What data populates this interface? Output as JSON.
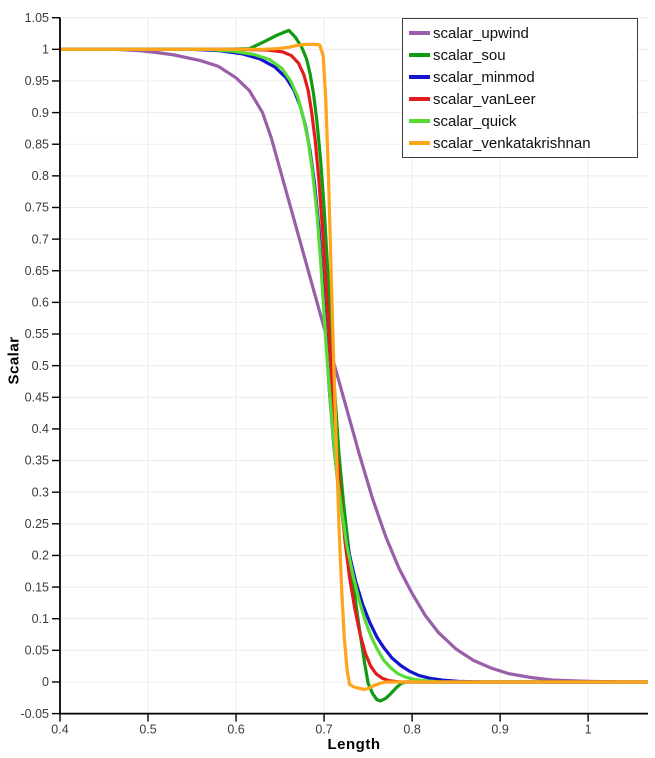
{
  "chart_data": {
    "type": "line",
    "title": "",
    "xlabel": "Length",
    "ylabel": "Scalar",
    "xlim": [
      0.4,
      1.068
    ],
    "ylim": [
      -0.05,
      1.05
    ],
    "grid": {
      "show": true,
      "color": "#ececec",
      "x_step": 0.1,
      "y_step": 0.05
    },
    "axis_color": "#000000",
    "tick_label_color": "#3b3b3b",
    "x_ticks": {
      "values": [
        0.4,
        0.5,
        0.6,
        0.7,
        0.8,
        0.9,
        1.0
      ],
      "labels": [
        "0.4",
        "0.5",
        "0.6",
        "0.7",
        "0.8",
        "0.9",
        "1"
      ]
    },
    "y_ticks": {
      "values": [
        1.05,
        1.0,
        0.95,
        0.9,
        0.85,
        0.8,
        0.75,
        0.7,
        0.65,
        0.6,
        0.55,
        0.5,
        0.45,
        0.4,
        0.35,
        0.3,
        0.25,
        0.2,
        0.15,
        0.1,
        0.05,
        0.0,
        -0.05
      ],
      "labels": [
        "1.05",
        "1",
        "0.95",
        "0.9",
        "0.85",
        "0.8",
        "0.75",
        "0.7",
        "0.65",
        "0.6",
        "0.55",
        "0.5",
        "0.45",
        "0.4",
        "0.35",
        "0.3",
        "0.25",
        "0.2",
        "0.15",
        "0.1",
        "0.05",
        "0",
        "-0.05"
      ]
    },
    "legend": {
      "position": "top-right",
      "border_color": "#3d3d3d",
      "background": "#ffffff"
    },
    "series": [
      {
        "name": "scalar_upwind",
        "color": "#9a5fa8",
        "points": [
          [
            0.4,
            1.0
          ],
          [
            0.46,
            1.0
          ],
          [
            0.49,
            0.998
          ],
          [
            0.51,
            0.995
          ],
          [
            0.53,
            0.991
          ],
          [
            0.56,
            0.982
          ],
          [
            0.58,
            0.973
          ],
          [
            0.6,
            0.955
          ],
          [
            0.615,
            0.935
          ],
          [
            0.63,
            0.9
          ],
          [
            0.64,
            0.86
          ],
          [
            0.65,
            0.81
          ],
          [
            0.66,
            0.76
          ],
          [
            0.67,
            0.71
          ],
          [
            0.68,
            0.66
          ],
          [
            0.69,
            0.61
          ],
          [
            0.7,
            0.56
          ],
          [
            0.712,
            0.5
          ],
          [
            0.725,
            0.435
          ],
          [
            0.74,
            0.36
          ],
          [
            0.755,
            0.29
          ],
          [
            0.77,
            0.23
          ],
          [
            0.785,
            0.18
          ],
          [
            0.8,
            0.14
          ],
          [
            0.815,
            0.105
          ],
          [
            0.83,
            0.078
          ],
          [
            0.85,
            0.052
          ],
          [
            0.87,
            0.034
          ],
          [
            0.89,
            0.022
          ],
          [
            0.91,
            0.013
          ],
          [
            0.935,
            0.007
          ],
          [
            0.96,
            0.003
          ],
          [
            1.0,
            0.001
          ],
          [
            1.04,
            0.0
          ],
          [
            1.068,
            0.0
          ]
        ]
      },
      {
        "name": "scalar_sou",
        "color": "#119b11",
        "points": [
          [
            0.4,
            1.0
          ],
          [
            0.59,
            1.0
          ],
          [
            0.615,
            1.001
          ],
          [
            0.632,
            1.012
          ],
          [
            0.646,
            1.022
          ],
          [
            0.66,
            1.03
          ],
          [
            0.668,
            1.018
          ],
          [
            0.675,
            1.002
          ],
          [
            0.68,
            0.985
          ],
          [
            0.684,
            0.962
          ],
          [
            0.688,
            0.93
          ],
          [
            0.692,
            0.885
          ],
          [
            0.696,
            0.825
          ],
          [
            0.7,
            0.75
          ],
          [
            0.704,
            0.655
          ],
          [
            0.708,
            0.555
          ],
          [
            0.712,
            0.46
          ],
          [
            0.717,
            0.36
          ],
          [
            0.722,
            0.285
          ],
          [
            0.728,
            0.21
          ],
          [
            0.734,
            0.145
          ],
          [
            0.74,
            0.085
          ],
          [
            0.746,
            0.03
          ],
          [
            0.75,
            -0.002
          ],
          [
            0.755,
            -0.018
          ],
          [
            0.76,
            -0.028
          ],
          [
            0.764,
            -0.03
          ],
          [
            0.77,
            -0.026
          ],
          [
            0.776,
            -0.018
          ],
          [
            0.782,
            -0.009
          ],
          [
            0.788,
            -0.002
          ],
          [
            0.794,
            0.0
          ],
          [
            0.86,
            0.0
          ],
          [
            1.068,
            0.0
          ]
        ]
      },
      {
        "name": "scalar_minmod",
        "color": "#1414cd",
        "points": [
          [
            0.4,
            1.0
          ],
          [
            0.55,
            1.0
          ],
          [
            0.58,
            0.998
          ],
          [
            0.607,
            0.993
          ],
          [
            0.627,
            0.985
          ],
          [
            0.644,
            0.972
          ],
          [
            0.657,
            0.955
          ],
          [
            0.666,
            0.935
          ],
          [
            0.673,
            0.91
          ],
          [
            0.679,
            0.878
          ],
          [
            0.684,
            0.84
          ],
          [
            0.689,
            0.79
          ],
          [
            0.694,
            0.72
          ],
          [
            0.698,
            0.64
          ],
          [
            0.702,
            0.55
          ],
          [
            0.706,
            0.46
          ],
          [
            0.711,
            0.375
          ],
          [
            0.716,
            0.31
          ],
          [
            0.722,
            0.25
          ],
          [
            0.729,
            0.2
          ],
          [
            0.736,
            0.158
          ],
          [
            0.744,
            0.122
          ],
          [
            0.752,
            0.094
          ],
          [
            0.76,
            0.071
          ],
          [
            0.768,
            0.054
          ],
          [
            0.777,
            0.038
          ],
          [
            0.787,
            0.026
          ],
          [
            0.797,
            0.017
          ],
          [
            0.808,
            0.01
          ],
          [
            0.82,
            0.006
          ],
          [
            0.834,
            0.003
          ],
          [
            0.852,
            0.001
          ],
          [
            0.88,
            0.0
          ],
          [
            1.068,
            0.0
          ]
        ]
      },
      {
        "name": "scalar_vanLeer",
        "color": "#e31b1b",
        "points": [
          [
            0.4,
            1.0
          ],
          [
            0.6,
            1.0
          ],
          [
            0.636,
            0.999
          ],
          [
            0.653,
            0.996
          ],
          [
            0.663,
            0.99
          ],
          [
            0.671,
            0.978
          ],
          [
            0.677,
            0.96
          ],
          [
            0.682,
            0.935
          ],
          [
            0.686,
            0.9
          ],
          [
            0.69,
            0.855
          ],
          [
            0.694,
            0.795
          ],
          [
            0.698,
            0.72
          ],
          [
            0.702,
            0.63
          ],
          [
            0.706,
            0.54
          ],
          [
            0.71,
            0.45
          ],
          [
            0.714,
            0.37
          ],
          [
            0.719,
            0.29
          ],
          [
            0.724,
            0.22
          ],
          [
            0.729,
            0.165
          ],
          [
            0.735,
            0.115
          ],
          [
            0.741,
            0.075
          ],
          [
            0.747,
            0.045
          ],
          [
            0.753,
            0.025
          ],
          [
            0.759,
            0.013
          ],
          [
            0.766,
            0.006
          ],
          [
            0.774,
            0.002
          ],
          [
            0.786,
            0.0
          ],
          [
            0.85,
            0.0
          ],
          [
            1.068,
            0.0
          ]
        ]
      },
      {
        "name": "scalar_quick",
        "color": "#55dd33",
        "points": [
          [
            0.4,
            1.0
          ],
          [
            0.565,
            1.0
          ],
          [
            0.597,
            0.997
          ],
          [
            0.62,
            0.992
          ],
          [
            0.638,
            0.984
          ],
          [
            0.652,
            0.97
          ],
          [
            0.662,
            0.95
          ],
          [
            0.67,
            0.925
          ],
          [
            0.676,
            0.895
          ],
          [
            0.682,
            0.855
          ],
          [
            0.687,
            0.805
          ],
          [
            0.692,
            0.74
          ],
          [
            0.696,
            0.665
          ],
          [
            0.7,
            0.58
          ],
          [
            0.704,
            0.5
          ],
          [
            0.709,
            0.41
          ],
          [
            0.714,
            0.335
          ],
          [
            0.72,
            0.27
          ],
          [
            0.726,
            0.215
          ],
          [
            0.733,
            0.168
          ],
          [
            0.74,
            0.128
          ],
          [
            0.747,
            0.096
          ],
          [
            0.754,
            0.07
          ],
          [
            0.761,
            0.05
          ],
          [
            0.768,
            0.034
          ],
          [
            0.776,
            0.022
          ],
          [
            0.784,
            0.013
          ],
          [
            0.792,
            0.008
          ],
          [
            0.802,
            0.004
          ],
          [
            0.814,
            0.002
          ],
          [
            0.832,
            0.0
          ],
          [
            1.068,
            0.0
          ]
        ]
      },
      {
        "name": "scalar_venkatakrishnan",
        "color": "#ffa41b",
        "points": [
          [
            0.4,
            1.0
          ],
          [
            0.63,
            1.0
          ],
          [
            0.646,
            1.001
          ],
          [
            0.659,
            1.003
          ],
          [
            0.669,
            1.006
          ],
          [
            0.679,
            1.008
          ],
          [
            0.689,
            1.008
          ],
          [
            0.695,
            1.007
          ],
          [
            0.699,
            0.99
          ],
          [
            0.702,
            0.92
          ],
          [
            0.705,
            0.8
          ],
          [
            0.708,
            0.65
          ],
          [
            0.711,
            0.5
          ],
          [
            0.714,
            0.37
          ],
          [
            0.717,
            0.245
          ],
          [
            0.72,
            0.145
          ],
          [
            0.723,
            0.07
          ],
          [
            0.726,
            0.02
          ],
          [
            0.729,
            -0.004
          ],
          [
            0.734,
            -0.008
          ],
          [
            0.74,
            -0.01
          ],
          [
            0.746,
            -0.012
          ],
          [
            0.752,
            -0.009
          ],
          [
            0.758,
            -0.005
          ],
          [
            0.764,
            -0.002
          ],
          [
            0.77,
            0.0
          ],
          [
            0.85,
            0.0
          ],
          [
            1.068,
            0.0
          ]
        ]
      }
    ]
  }
}
